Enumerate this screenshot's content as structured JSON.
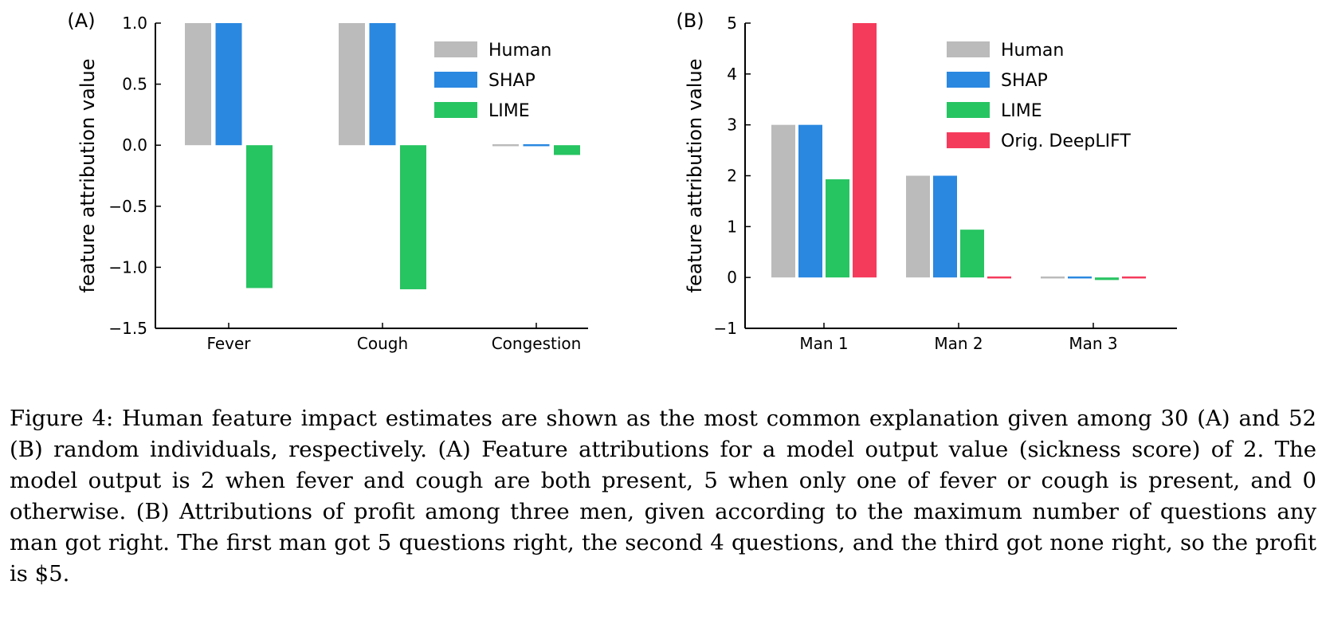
{
  "chart_data": [
    {
      "type": "bar",
      "panel_label": "(A)",
      "ylabel": "feature attribution value",
      "categories": [
        "Fever",
        "Cough",
        "Congestion"
      ],
      "ylim": [
        -1.5,
        1.0
      ],
      "yticks": [
        -1.5,
        -1.0,
        -0.5,
        0.0,
        0.5,
        1.0
      ],
      "ytick_labels": [
        "−1.5",
        "−1.0",
        "−0.5",
        "0.0",
        "0.5",
        "1.0"
      ],
      "legend_position": "top-right",
      "series": [
        {
          "name": "Human",
          "color": "#bbbbbb",
          "values": [
            1.0,
            1.0,
            0.0
          ]
        },
        {
          "name": "SHAP",
          "color": "#2a88e0",
          "values": [
            1.0,
            1.0,
            0.0
          ]
        },
        {
          "name": "LIME",
          "color": "#27c462",
          "values": [
            -1.17,
            -1.18,
            -0.08
          ]
        }
      ]
    },
    {
      "type": "bar",
      "panel_label": "(B)",
      "ylabel": "feature attribution value",
      "categories": [
        "Man 1",
        "Man 2",
        "Man 3"
      ],
      "ylim": [
        -1,
        5
      ],
      "yticks": [
        -1,
        0,
        1,
        2,
        3,
        4,
        5
      ],
      "ytick_labels": [
        "−1",
        "0",
        "1",
        "2",
        "3",
        "4",
        "5"
      ],
      "legend_position": "top-center",
      "series": [
        {
          "name": "Human",
          "color": "#bbbbbb",
          "values": [
            3,
            2,
            0
          ]
        },
        {
          "name": "SHAP",
          "color": "#2a88e0",
          "values": [
            3,
            2,
            0
          ]
        },
        {
          "name": "LIME",
          "color": "#27c462",
          "values": [
            1.93,
            0.94,
            -0.05
          ]
        },
        {
          "name": "Orig. DeepLIFT",
          "color": "#f53b5c",
          "values": [
            5,
            0,
            0
          ]
        }
      ]
    }
  ],
  "caption": "Figure 4: Human feature impact estimates are shown as the most common explanation given among 30 (A) and 52 (B) random individuals, respectively. (A) Feature attributions for a model output value (sickness score) of 2. The model output is 2 when fever and cough are both present, 5 when only one of fever or cough is present, and 0 otherwise. (B) Attributions of profit among three men, given according to the maximum number of questions any man got right. The first man got 5 questions right, the second 4 questions, and the third got none right, so the profit is $5."
}
